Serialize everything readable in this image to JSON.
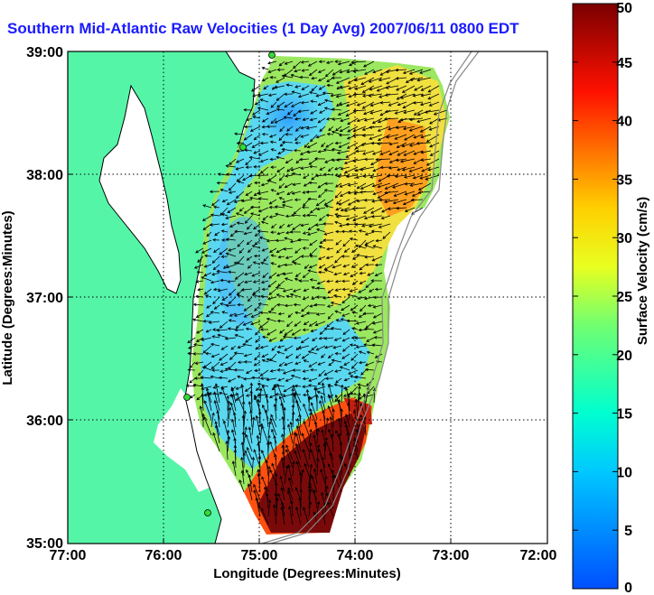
{
  "title": "Southern Mid-Atlantic Raw Velocities (1 Day Avg) 2007/06/11 0800 EDT",
  "axes": {
    "xlabel": "Longitude (Degrees:Minutes)",
    "ylabel": "Latitude (Degrees:Minutes)",
    "xticks": [
      "77:00",
      "76:00",
      "75:00",
      "74:00",
      "73:00",
      "72:00"
    ],
    "yticks": [
      "39:00",
      "38:00",
      "37:00",
      "36:00",
      "35:00"
    ]
  },
  "colorbar": {
    "label": "Surface Velocity (cm/s)",
    "min": 0,
    "max": 50,
    "ticks": [
      "50",
      "45",
      "40",
      "35",
      "30",
      "25",
      "20",
      "15",
      "10",
      "5",
      "0"
    ]
  },
  "colors": {
    "land": "#55f5a8",
    "grid": "#000000",
    "title": "#1a1aff"
  }
}
